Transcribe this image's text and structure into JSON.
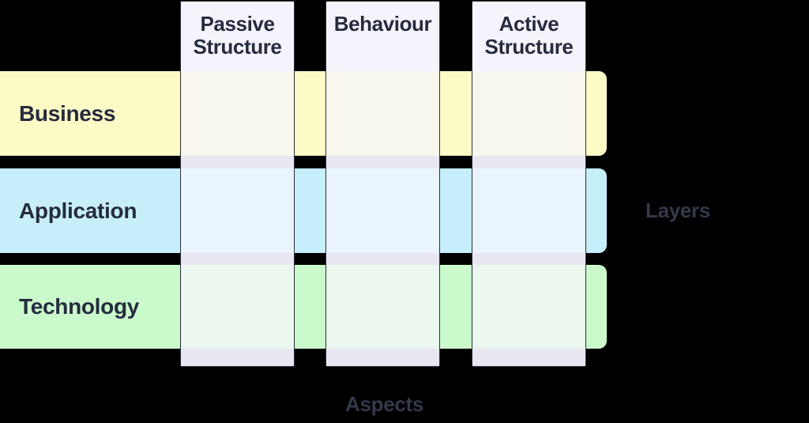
{
  "diagram": {
    "kind": "framework-matrix",
    "columns": [
      {
        "id": "passive-structure",
        "label": "Passive\nStructure"
      },
      {
        "id": "behaviour",
        "label": "Behaviour"
      },
      {
        "id": "active-structure",
        "label": "Active\nStructure"
      }
    ],
    "rows": [
      {
        "id": "business",
        "label": "Business",
        "color": "#FCFAC5",
        "tint": "#F8F7EE"
      },
      {
        "id": "application",
        "label": "Application",
        "color": "#C7EEFB",
        "tint": "#EAF4FC"
      },
      {
        "id": "technology",
        "label": "Technology",
        "color": "#CAFACB",
        "tint": "#EBF7EF"
      }
    ],
    "axis": {
      "rows_label": "Layers",
      "columns_label": "Aspects"
    },
    "colors": {
      "background": "#000000",
      "column_header_bg": "#F5F4FC",
      "column_base_bg": "#E8E6F0",
      "column_border": "#2B2E38",
      "heading_text": "#262B3E",
      "axis_text": "#343949"
    }
  }
}
